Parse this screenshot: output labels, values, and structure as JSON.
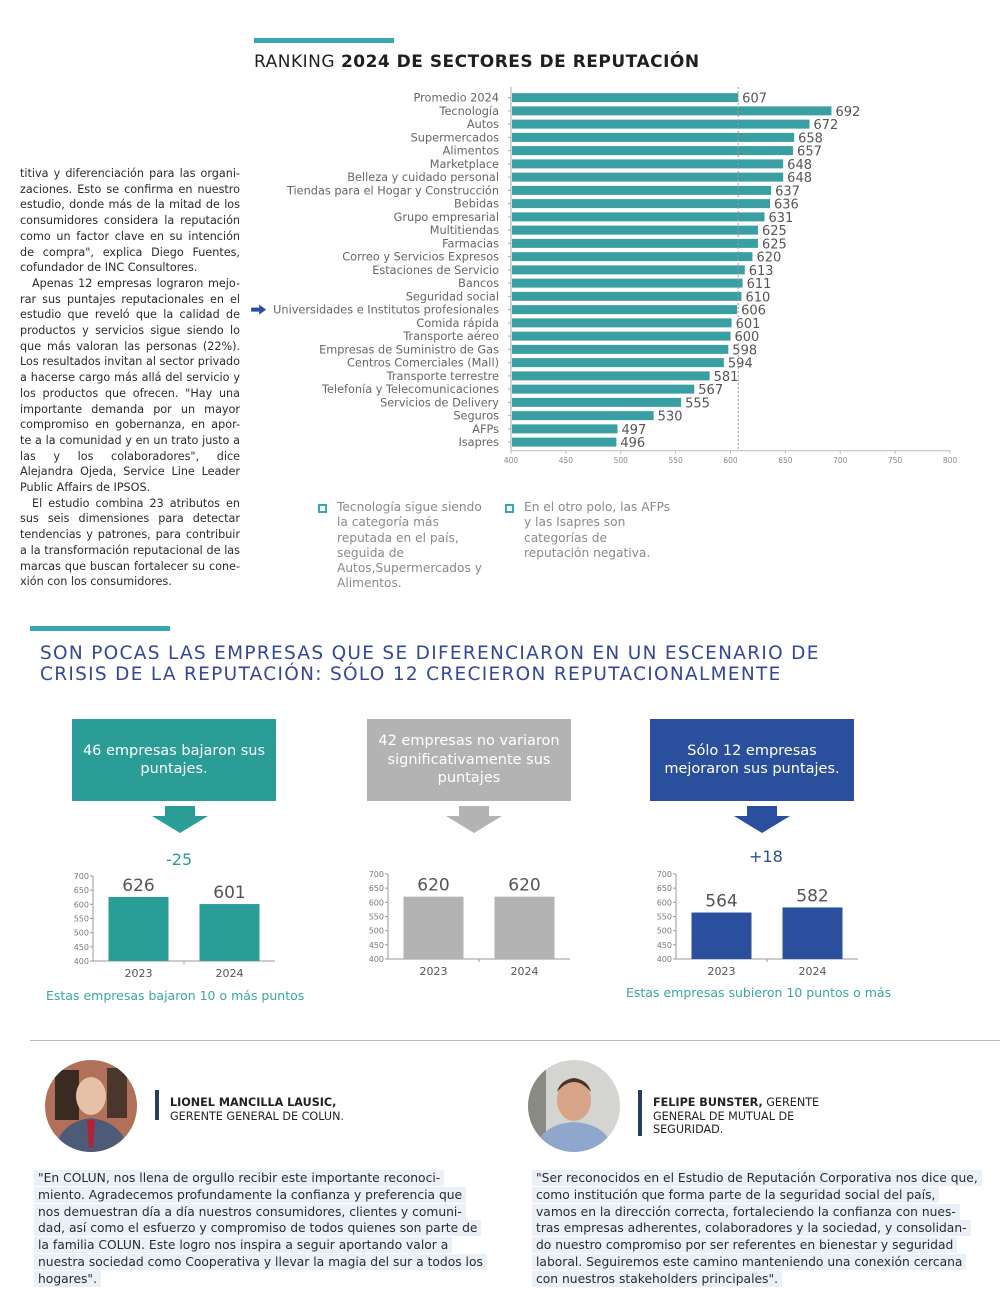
{
  "ranking": {
    "title_regular": "RANKING ",
    "title_bold": "2024 DE SECTORES DE REPUTACIÓN"
  },
  "chart_data": [
    {
      "type": "bar",
      "orientation": "horizontal",
      "title": "RANKING 2024 DE SECTORES DE REPUTACIÓN",
      "categories": [
        "Promedio 2024",
        "Tecnología",
        "Autos",
        "Supermercados",
        "Alimentos",
        "Marketplace",
        "Belleza y cuidado personal",
        "Tiendas para el Hogar y Construcción",
        "Bebidas",
        "Grupo empresarial",
        "Multitiendas",
        "Farmacias",
        "Correo y Servicios Expresos",
        "Estaciones de Servicio",
        "Bancos",
        "Seguridad social",
        "Universidades e Institutos profesionales",
        "Comida rápida",
        "Transporte aéreo",
        "Empresas de Suministro de Gas",
        "Centros Comerciales (Mall)",
        "Transporte terrestre",
        "Telefonía y Telecomunicaciones",
        "Servicios de Delivery",
        "Seguros",
        "AFPs",
        "Isapres"
      ],
      "values": [
        607,
        692,
        672,
        658,
        657,
        648,
        648,
        637,
        636,
        631,
        625,
        625,
        620,
        613,
        611,
        610,
        606,
        601,
        600,
        598,
        594,
        581,
        567,
        555,
        530,
        497,
        496
      ],
      "xlim": [
        400,
        800
      ],
      "xticks": [
        400,
        450,
        500,
        550,
        600,
        650,
        700,
        750,
        800
      ],
      "reference_line": 607,
      "highlighted_category": "Universidades e Institutos profesionales",
      "bar_color": "#3a9fa3",
      "grid": false
    },
    {
      "type": "bar",
      "title": "46 empresas bajaron sus puntajes.",
      "categories": [
        "2023",
        "2024"
      ],
      "values": [
        626,
        601
      ],
      "delta": "-25",
      "ylim": [
        400,
        700
      ],
      "yticks": [
        400,
        450,
        500,
        550,
        600,
        650,
        700
      ],
      "bar_color": "#2a9d96",
      "caption": "Estas empresas bajaron 10 o más puntos"
    },
    {
      "type": "bar",
      "title": "42 empresas no variaron significativamente sus puntajes",
      "categories": [
        "2023",
        "2024"
      ],
      "values": [
        620,
        620
      ],
      "ylim": [
        400,
        700
      ],
      "yticks": [
        400,
        450,
        500,
        550,
        600,
        650,
        700
      ],
      "bar_color": "#b3b3b3"
    },
    {
      "type": "bar",
      "title": "Sólo 12 empresas mejoraron sus puntajes.",
      "categories": [
        "2023",
        "2024"
      ],
      "values": [
        564,
        582
      ],
      "delta": "+18",
      "ylim": [
        400,
        700
      ],
      "yticks": [
        400,
        450,
        500,
        550,
        600,
        650,
        700
      ],
      "bar_color": "#2a4f9c",
      "caption": "Estas empresas subieron 10 puntos o más"
    }
  ],
  "body": {
    "p1": "titiva y diferenciación para las organi- zaciones. Esto se confirma en nuestro estudio, donde más de la mitad de los consumidores considera la reputación como un factor clave en su intención de compra\", explica Diego Fuentes, cofundador de INC Consultores.",
    "p2": "Apenas 12 empresas lograron mejo- rar sus puntajes reputacionales en el estudio que reveló que la calidad de productos y servicios sigue siendo lo que más valoran las personas (22%). Los resultados invitan al sector privado a hacerse cargo más allá del servicio y los productos que ofrecen. \"Hay una importante demanda por un mayor compromiso en gobernanza, en apor- te a la comunidad y en un trato justo a las y los colaboradores\", dice Alejandra Ojeda, Service Line Leader Public Affairs de IPSOS.",
    "p3": "El estudio combina 23 atributos en sus seis dimensiones para detectar tendencias y patrones, para contribuir a la transformación reputacional de las marcas que buscan fortalecer su cone- xión con los consumidores."
  },
  "notes": [
    {
      "icon": "checkbox-icon",
      "text": "Tecnología sigue siendo la categoría más reputada en el país, seguida de Autos,Supermercados y Alimentos."
    },
    {
      "icon": "checkbox-icon",
      "text": "En el otro polo, las AFPs y las Isapres son categorías de reputación negativa."
    }
  ],
  "section2": {
    "title_line1": "SON POCAS LAS EMPRESAS QUE SE DIFERENCIARON EN UN ESCENARIO DE",
    "title_line2": "CRISIS DE LA REPUTACIÓN: SÓLO 12 CRECIERON REPUTACIONALMENTE",
    "boxes": [
      {
        "text": "46 empresas bajaron sus puntajes.",
        "color": "#2a9d96"
      },
      {
        "text": "42 empresas no variaron significativamente sus puntajes",
        "color": "#b3b3b3"
      },
      {
        "text": "Sólo 12 empresas mejoraron sus puntajes.",
        "color": "#2a4f9c"
      }
    ],
    "deltas": [
      "-25",
      "+18"
    ],
    "delta_colors": [
      "#2a9d96",
      "#2a4f9c"
    ],
    "captions": [
      "Estas empresas bajaron 10 o más puntos",
      "Estas empresas subieron 10 puntos o más"
    ]
  },
  "quotes": [
    {
      "name": "LIONEL MANCILLA LAUSIC,",
      "role": "GERENTE GENERAL DE COLUN.",
      "text": "\"En COLUN, nos llena de orgullo recibir este importante reconoci- miento. Agradecemos profundamente la confianza y preferencia que nos demuestran día a día nuestros consumidores, clientes y comuni- dad, así como el esfuerzo y compromiso de todos quienes son parte de la familia COLUN. Este logro nos inspira a seguir aportando valor a nuestra sociedad como Cooperativa y llevar la magia del sur a todos los hogares\"."
    },
    {
      "name": "FELIPE BUNSTER,",
      "role": "GERENTE GENERAL DE MUTUAL DE SEGURIDAD.",
      "text": "\"Ser reconocidos en el Estudio de Reputación Corporativa nos dice que, como institución que forma parte de la seguridad social del país, vamos en la dirección correcta, fortaleciendo la confianza con nues- tras empresas adherentes, colaboradores y la sociedad, y consolidan- do nuestro compromiso por ser referentes en bienestar y seguridad laboral. Seguiremos este camino manteniendo una conexión cercana con nuestros stakeholders principales\"."
    }
  ]
}
